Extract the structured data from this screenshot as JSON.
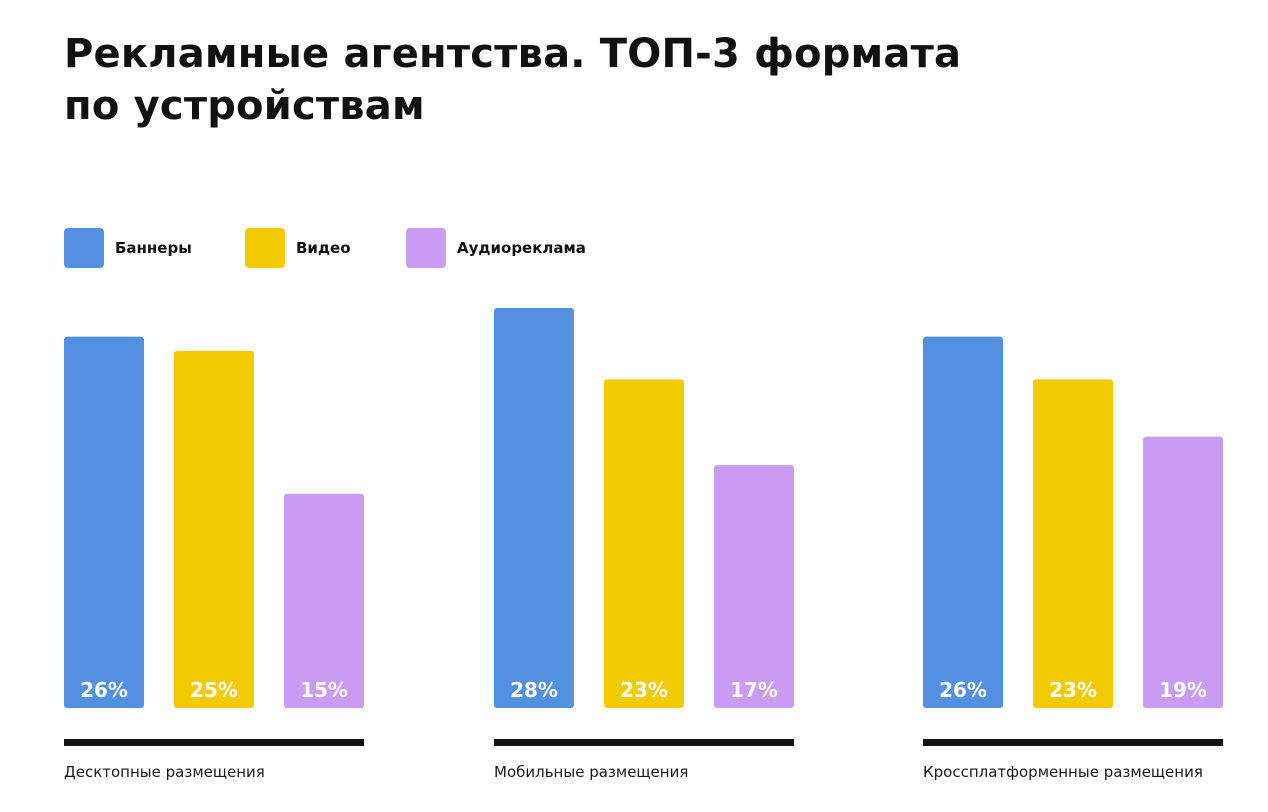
{
  "title": {
    "line1": "Рекламные агентства. ТОП-3 формата",
    "line2": "по устройствам"
  },
  "legend": [
    {
      "label": "Баннеры",
      "color": "#5291e0"
    },
    {
      "label": "Видео",
      "color": "#f2ca00"
    },
    {
      "label": "Аудиореклама",
      "color": "#c99bf2"
    }
  ],
  "chart_data": {
    "type": "bar",
    "categories": [
      "Десктопные размещения",
      "Мобильные размещения",
      "Кроссплатформенные размещения"
    ],
    "series": [
      {
        "name": "Баннеры",
        "color": "#5291e0",
        "values": [
          26,
          28,
          26
        ]
      },
      {
        "name": "Видео",
        "color": "#f2ca00",
        "values": [
          25,
          23,
          23
        ]
      },
      {
        "name": "Аудиореклама",
        "color": "#c99bf2",
        "values": [
          15,
          17,
          19
        ]
      }
    ],
    "value_suffix": "%",
    "ylim": [
      0,
      28
    ],
    "grid": false,
    "legend_position": "top-left"
  }
}
